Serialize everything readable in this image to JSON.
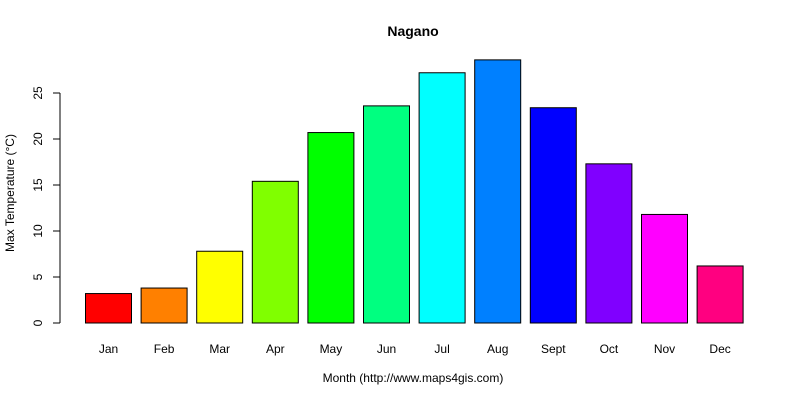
{
  "chart_data": {
    "type": "bar",
    "title": "Nagano",
    "xlabel": "Month (http://www.maps4gis.com)",
    "ylabel": "Max Temperature (°C)",
    "categories": [
      "Jan",
      "Feb",
      "Mar",
      "Apr",
      "May",
      "Jun",
      "Jul",
      "Aug",
      "Sept",
      "Oct",
      "Nov",
      "Dec"
    ],
    "values": [
      3.2,
      3.8,
      7.8,
      15.4,
      20.7,
      23.6,
      27.2,
      28.6,
      23.4,
      17.3,
      11.8,
      6.2
    ],
    "colors": [
      "#ff0000",
      "#ff8000",
      "#ffff00",
      "#80ff00",
      "#00ff00",
      "#00ff80",
      "#00ffff",
      "#0080ff",
      "#0000ff",
      "#8000ff",
      "#ff00ff",
      "#ff0080"
    ],
    "yticks": [
      0,
      5,
      10,
      15,
      20,
      25
    ],
    "ylim": [
      0,
      30
    ],
    "grid": false,
    "legend": "none"
  }
}
